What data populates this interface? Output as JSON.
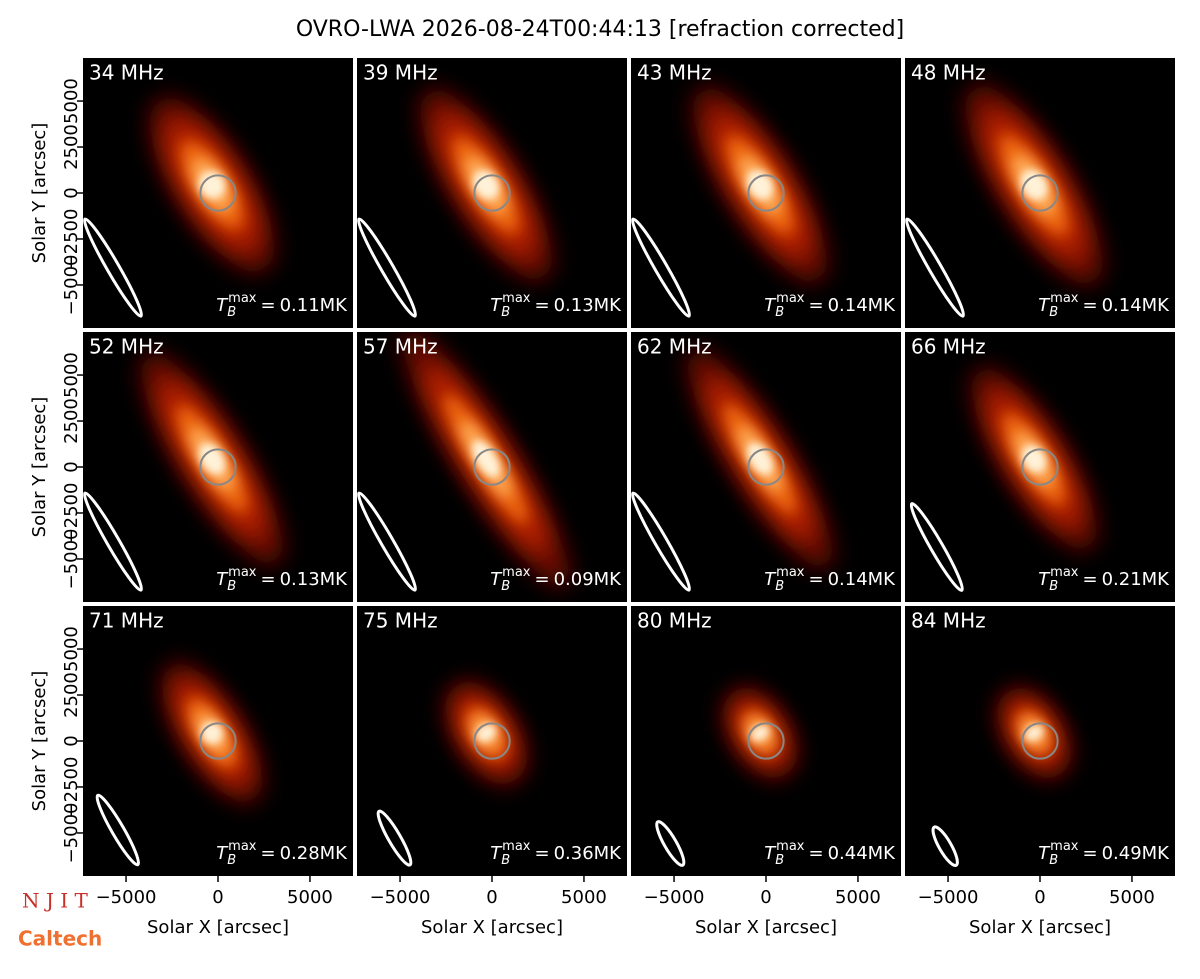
{
  "chart_data": {
    "type": "heatmap",
    "title": "OVRO-LWA 2026-08-24T00:44:13 [refraction corrected]",
    "categories": [
      "34 MHz",
      "39 MHz",
      "43 MHz",
      "48 MHz",
      "52 MHz",
      "57 MHz",
      "62 MHz",
      "66 MHz",
      "71 MHz",
      "75 MHz",
      "80 MHz",
      "84 MHz"
    ],
    "values": [
      0.11,
      0.13,
      0.14,
      0.14,
      0.13,
      0.09,
      0.14,
      0.21,
      0.28,
      0.36,
      0.44,
      0.49
    ],
    "value_labels": [
      "0.11MK",
      "0.13MK",
      "0.14MK",
      "0.14MK",
      "0.13MK",
      "0.09MK",
      "0.14MK",
      "0.21MK",
      "0.28MK",
      "0.36MK",
      "0.44MK",
      "0.49MK"
    ],
    "tb_symbol": "T",
    "tb_subscript": "B",
    "tb_superscript": "max",
    "tb_equals": "=",
    "xlabel": "Solar X [arcsec]",
    "ylabel": "Solar Y [arcsec]",
    "xlim": [
      -7340,
      7340
    ],
    "ylim": [
      -7340,
      7340
    ],
    "xticks": [
      {
        "value": -5000,
        "label": "−5000"
      },
      0,
      5000
    ],
    "yticks": [
      {
        "value": -5000,
        "label": "−5000"
      },
      {
        "value": -2500,
        "label": "−2500"
      },
      0,
      2500,
      5000
    ],
    "logos": [
      "N J I T",
      "Caltech"
    ]
  }
}
